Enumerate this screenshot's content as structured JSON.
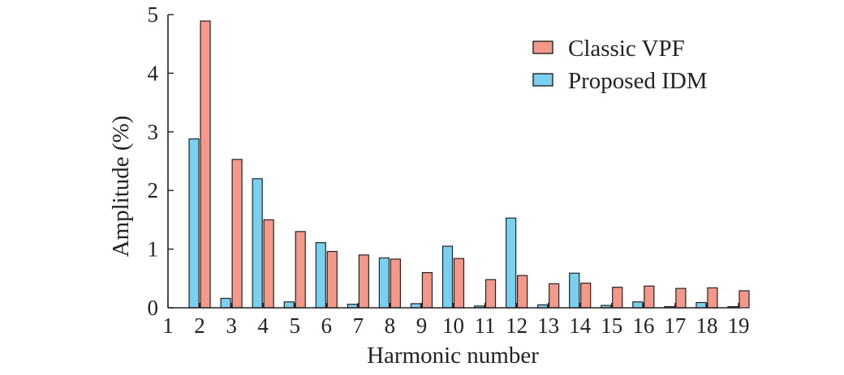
{
  "chart_data": {
    "type": "bar",
    "title": "",
    "xlabel": "Harmonic number",
    "ylabel": "Amplitude (%)",
    "categories": [
      "1",
      "2",
      "3",
      "4",
      "5",
      "6",
      "7",
      "8",
      "9",
      "10",
      "11",
      "12",
      "13",
      "14",
      "15",
      "16",
      "17",
      "18",
      "19"
    ],
    "ylim": [
      0,
      5
    ],
    "yticks": [
      "0",
      "1",
      "2",
      "3",
      "4",
      "5"
    ],
    "grid": false,
    "legend_position": "top-right",
    "series": [
      {
        "name": "Classic VPF",
        "color": "#f4998a",
        "values": [
          null,
          4.89,
          2.53,
          1.5,
          1.3,
          0.96,
          0.9,
          0.83,
          0.6,
          0.84,
          0.48,
          0.55,
          0.41,
          0.42,
          0.35,
          0.37,
          0.33,
          0.34,
          0.29
        ]
      },
      {
        "name": "Proposed IDM",
        "color": "#7cd0ef",
        "values": [
          null,
          2.88,
          0.16,
          2.2,
          0.1,
          1.11,
          0.06,
          0.85,
          0.07,
          1.05,
          0.03,
          1.53,
          0.05,
          0.59,
          0.04,
          0.1,
          0.02,
          0.09,
          0.02
        ]
      }
    ]
  }
}
